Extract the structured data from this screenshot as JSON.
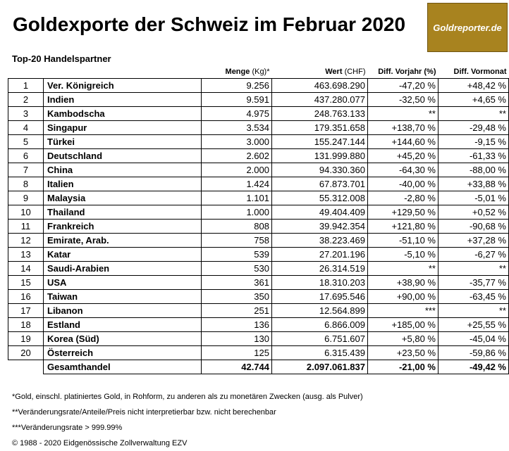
{
  "title": "Goldexporte der Schweiz im Februar 2020",
  "logo_text": "Goldreporter.de",
  "subtitle": "Top-20 Handelspartner",
  "columns": {
    "menge": "Menge",
    "menge_unit": "(Kg)*",
    "wert": "Wert",
    "wert_unit": "(CHF)",
    "vorjahr": "Diff. Vorjahr (%)",
    "vormonat": "Diff. Vormonat"
  },
  "rows": [
    {
      "rank": "1",
      "country": "Ver. Königreich",
      "menge": "9.256",
      "wert": "463.698.290",
      "vorjahr": "-47,20 %",
      "vormonat": "+48,42 %"
    },
    {
      "rank": "2",
      "country": "Indien",
      "menge": "9.591",
      "wert": "437.280.077",
      "vorjahr": "-32,50 %",
      "vormonat": "+4,65 %"
    },
    {
      "rank": "3",
      "country": "Kambodscha",
      "menge": "4.975",
      "wert": "248.763.133",
      "vorjahr": "**",
      "vormonat": "**"
    },
    {
      "rank": "4",
      "country": "Singapur",
      "menge": "3.534",
      "wert": "179.351.658",
      "vorjahr": "+138,70 %",
      "vormonat": "-29,48 %"
    },
    {
      "rank": "5",
      "country": "Türkei",
      "menge": "3.000",
      "wert": "155.247.144",
      "vorjahr": "+144,60 %",
      "vormonat": "-9,15 %"
    },
    {
      "rank": "6",
      "country": "Deutschland",
      "menge": "2.602",
      "wert": "131.999.880",
      "vorjahr": "+45,20 %",
      "vormonat": "-61,33 %"
    },
    {
      "rank": "7",
      "country": "China",
      "menge": "2.000",
      "wert": "94.330.360",
      "vorjahr": "-64,30 %",
      "vormonat": "-88,00 %"
    },
    {
      "rank": "8",
      "country": "Italien",
      "menge": "1.424",
      "wert": "67.873.701",
      "vorjahr": "-40,00 %",
      "vormonat": "+33,88 %"
    },
    {
      "rank": "9",
      "country": "Malaysia",
      "menge": "1.101",
      "wert": "55.312.008",
      "vorjahr": "-2,80 %",
      "vormonat": "-5,01 %"
    },
    {
      "rank": "10",
      "country": "Thailand",
      "menge": "1.000",
      "wert": "49.404.409",
      "vorjahr": "+129,50 %",
      "vormonat": "+0,52 %"
    },
    {
      "rank": "11",
      "country": "Frankreich",
      "menge": "808",
      "wert": "39.942.354",
      "vorjahr": "+121,80 %",
      "vormonat": "-90,68 %"
    },
    {
      "rank": "12",
      "country": "Emirate, Arab.",
      "menge": "758",
      "wert": "38.223.469",
      "vorjahr": "-51,10 %",
      "vormonat": "+37,28 %"
    },
    {
      "rank": "13",
      "country": "Katar",
      "menge": "539",
      "wert": "27.201.196",
      "vorjahr": "-5,10 %",
      "vormonat": "-6,27 %"
    },
    {
      "rank": "14",
      "country": "Saudi-Arabien",
      "menge": "530",
      "wert": "26.314.519",
      "vorjahr": "**",
      "vormonat": "**"
    },
    {
      "rank": "15",
      "country": "USA",
      "menge": "361",
      "wert": "18.310.203",
      "vorjahr": "+38,90 %",
      "vormonat": "-35,77 %"
    },
    {
      "rank": "16",
      "country": "Taiwan",
      "menge": "350",
      "wert": "17.695.546",
      "vorjahr": "+90,00 %",
      "vormonat": "-63,45 %"
    },
    {
      "rank": "17",
      "country": "Libanon",
      "menge": "251",
      "wert": "12.564.899",
      "vorjahr": "***",
      "vormonat": "**"
    },
    {
      "rank": "18",
      "country": "Estland",
      "menge": "136",
      "wert": "6.866.009",
      "vorjahr": "+185,00 %",
      "vormonat": "+25,55 %"
    },
    {
      "rank": "19",
      "country": "Korea (Süd)",
      "menge": "130",
      "wert": "6.751.607",
      "vorjahr": "+5,80 %",
      "vormonat": "-45,04 %"
    },
    {
      "rank": "20",
      "country": "Österreich",
      "menge": "125",
      "wert": "6.315.439",
      "vorjahr": "+23,50 %",
      "vormonat": "-59,86 %"
    }
  ],
  "total": {
    "label": "Gesamthandel",
    "menge": "42.744",
    "wert": "2.097.061.837",
    "vorjahr": "-21,00 %",
    "vormonat": "-49,42 %"
  },
  "footnotes": [
    "*Gold, einschl. platiniertes Gold, in Rohform, zu anderen als zu monetären Zwecken (ausg. als Pulver)",
    "**Veränderungsrate/Anteile/Preis nicht interpretierbar bzw. nicht berechenbar",
    "***Veränderungsrate > 999.99%",
    "© 1988 - 2020 Eidgenössische Zollverwaltung EZV"
  ],
  "colors": {
    "logo_bg": "#a8831f",
    "text": "#000000"
  }
}
